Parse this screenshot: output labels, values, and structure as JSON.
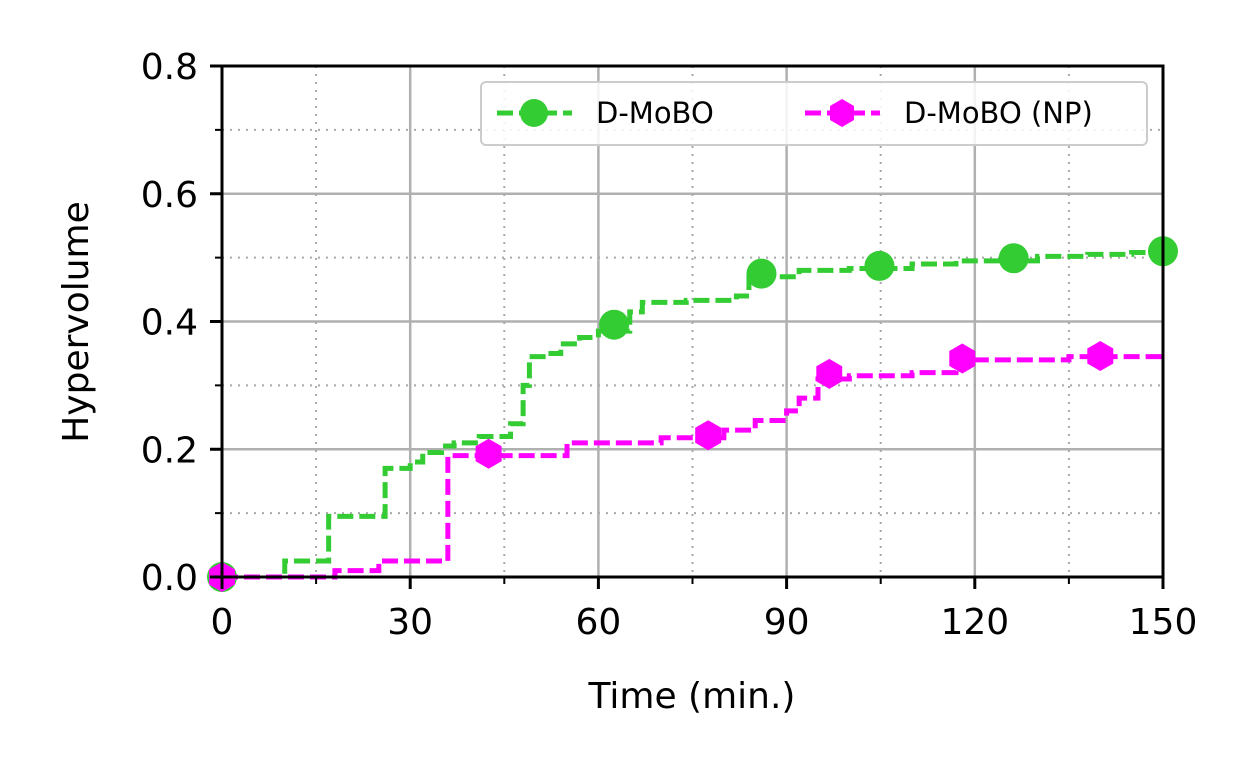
{
  "chart_data": {
    "type": "line",
    "xlabel": "Time (min.)",
    "ylabel": "Hypervolume",
    "xlim": [
      0,
      150
    ],
    "ylim": [
      0,
      0.8
    ],
    "x_ticks": [
      0,
      30,
      60,
      90,
      120,
      150
    ],
    "x_tick_labels": [
      "0",
      "30",
      "60",
      "90",
      "120",
      "150"
    ],
    "y_ticks": [
      0.0,
      0.2,
      0.4,
      0.6,
      0.8
    ],
    "y_tick_labels": [
      "0.0",
      "0.2",
      "0.4",
      "0.6",
      "0.8"
    ],
    "x_minor_ticks": [
      15,
      45,
      75,
      105,
      135
    ],
    "y_minor_ticks": [
      0.1,
      0.3,
      0.5,
      0.7
    ],
    "grid": true,
    "legend_position": "top-right",
    "series": [
      {
        "name": "D-MoBO",
        "color": "#33cc33",
        "marker": "circle",
        "steps": [
          [
            0,
            0
          ],
          [
            10,
            0.025
          ],
          [
            17,
            0.095
          ],
          [
            26,
            0.17
          ],
          [
            30,
            0.18
          ],
          [
            32,
            0.195
          ],
          [
            35,
            0.205
          ],
          [
            37,
            0.21
          ],
          [
            41,
            0.22
          ],
          [
            46,
            0.24
          ],
          [
            48,
            0.3
          ],
          [
            49,
            0.345
          ],
          [
            52,
            0.35
          ],
          [
            54,
            0.365
          ],
          [
            57,
            0.375
          ],
          [
            60,
            0.385
          ],
          [
            65,
            0.415
          ],
          [
            67,
            0.43
          ],
          [
            74,
            0.433
          ],
          [
            82,
            0.44
          ],
          [
            84,
            0.47
          ],
          [
            92,
            0.48
          ],
          [
            100,
            0.483
          ],
          [
            110,
            0.49
          ],
          [
            117,
            0.495
          ],
          [
            130,
            0.502
          ],
          [
            138,
            0.505
          ],
          [
            145,
            0.508
          ]
        ],
        "markers": [
          [
            0,
            0
          ],
          [
            62.5,
            0.395
          ],
          [
            86,
            0.475
          ],
          [
            104.8,
            0.487
          ],
          [
            126.2,
            0.499
          ],
          [
            150,
            0.51
          ]
        ]
      },
      {
        "name": "D-MoBO (NP)",
        "color": "#ff00ff",
        "marker": "hexagon",
        "steps": [
          [
            0,
            0
          ],
          [
            18,
            0.01
          ],
          [
            25,
            0.025
          ],
          [
            36,
            0.19
          ],
          [
            55,
            0.21
          ],
          [
            70,
            0.218
          ],
          [
            80,
            0.23
          ],
          [
            85,
            0.245
          ],
          [
            90,
            0.26
          ],
          [
            92,
            0.28
          ],
          [
            95,
            0.31
          ],
          [
            100,
            0.315
          ],
          [
            110,
            0.32
          ],
          [
            117,
            0.34
          ],
          [
            135,
            0.345
          ],
          [
            145,
            0.345
          ]
        ],
        "markers": [
          [
            0,
            0
          ],
          [
            42.5,
            0.193
          ],
          [
            77.5,
            0.222
          ],
          [
            96.8,
            0.318
          ],
          [
            118,
            0.342
          ],
          [
            140,
            0.346
          ]
        ]
      }
    ]
  }
}
